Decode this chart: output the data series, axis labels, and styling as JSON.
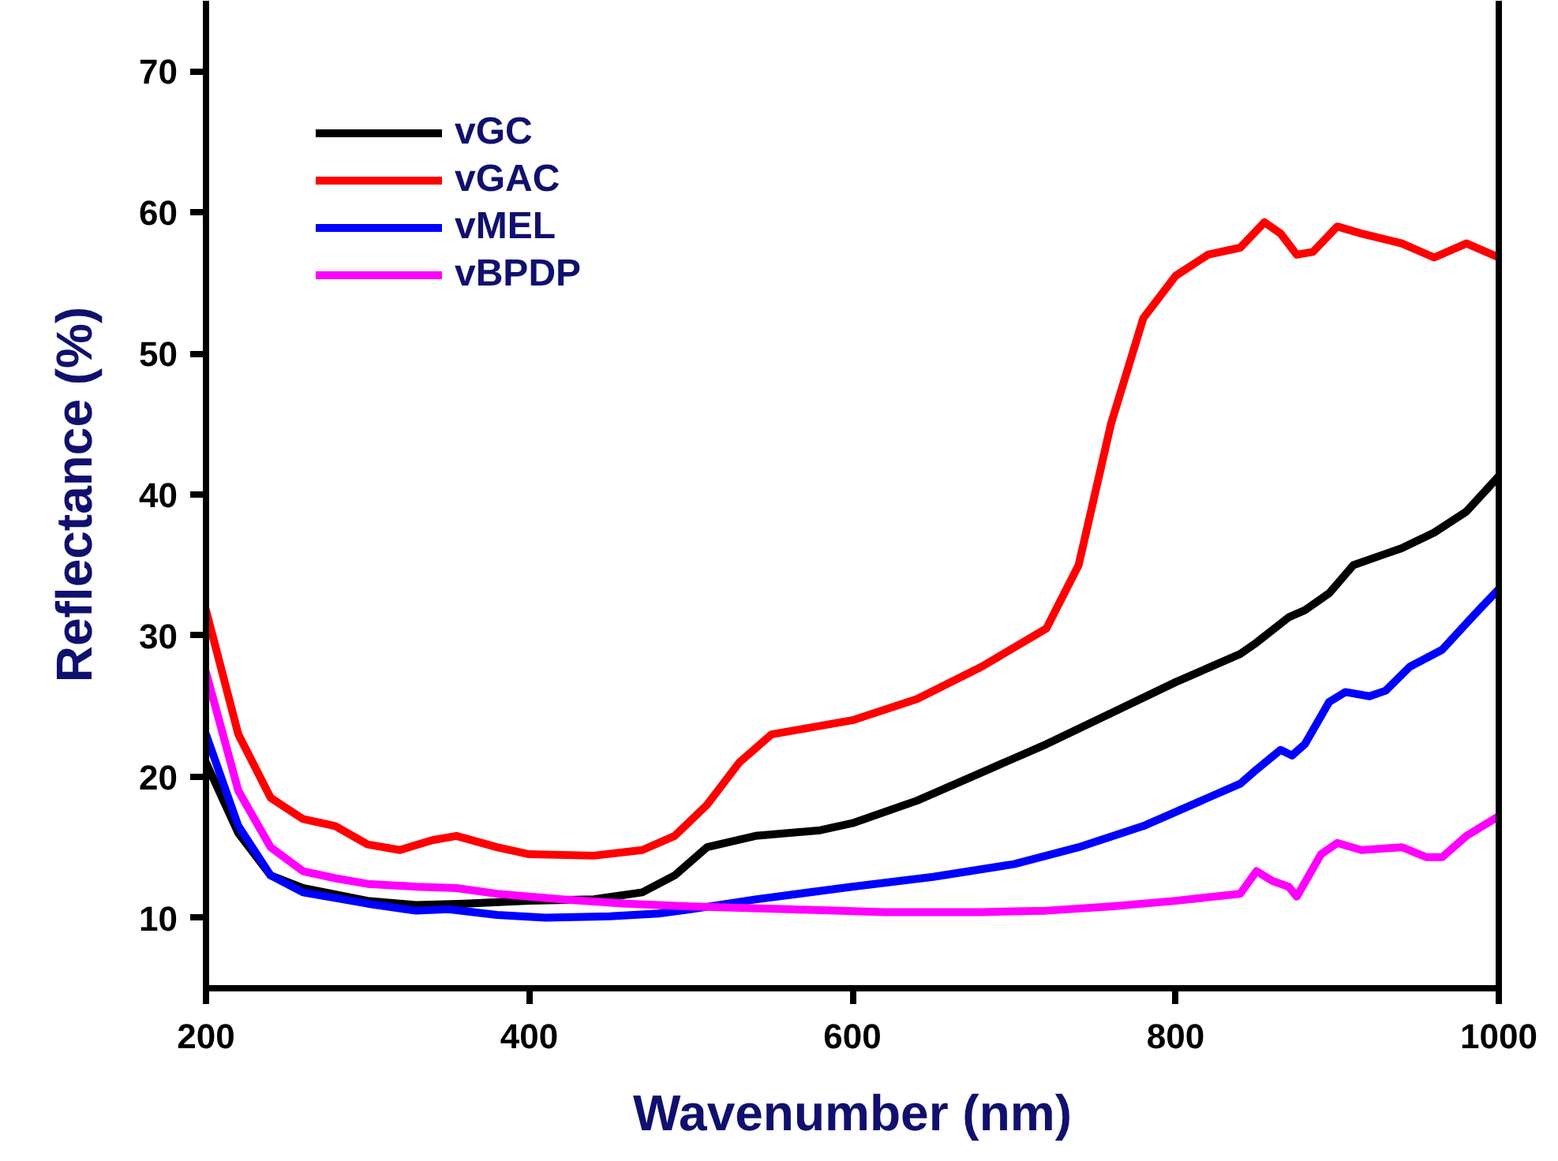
{
  "chart_data": {
    "type": "line",
    "xlabel": "Wavenumber (nm)",
    "ylabel": "Reflectance (%)",
    "xlim": [
      200,
      1000
    ],
    "ylim": [
      5,
      75
    ],
    "xticks": [
      200,
      400,
      600,
      800,
      1000
    ],
    "yticks": [
      10,
      20,
      30,
      40,
      50,
      60,
      70
    ],
    "grid": false,
    "legend": "top left",
    "marker": "none",
    "line_style": "solid",
    "series": [
      {
        "name": "vGC",
        "color": "#000000",
        "x": [
          200,
          220,
          240,
          260,
          300,
          330,
          360,
          400,
          440,
          470,
          490,
          510,
          540,
          580,
          600,
          640,
          680,
          720,
          760,
          800,
          840,
          850,
          870,
          880,
          895,
          910,
          930,
          940,
          960,
          980,
          1000
        ],
        "values": [
          21,
          16,
          13,
          12.1,
          11.2,
          10.9,
          11,
          11.2,
          11.3,
          11.8,
          13,
          15,
          15.8,
          16.2,
          16.7,
          18.3,
          20.3,
          22.3,
          24.5,
          26.7,
          28.7,
          29.5,
          31.3,
          31.8,
          33,
          35,
          35.8,
          36.2,
          37.3,
          38.8,
          41.3
        ]
      },
      {
        "name": "vGAC",
        "color": "#ff0000",
        "x": [
          200,
          220,
          240,
          260,
          280,
          300,
          320,
          340,
          355,
          380,
          400,
          440,
          470,
          490,
          510,
          530,
          550,
          575,
          600,
          640,
          680,
          720,
          740,
          760,
          780,
          800,
          820,
          840,
          855,
          865,
          875,
          885,
          900,
          915,
          940,
          960,
          980,
          1000
        ],
        "values": [
          31.8,
          23,
          18.5,
          17,
          16.5,
          15.2,
          14.8,
          15.5,
          15.8,
          15,
          14.5,
          14.4,
          14.8,
          15.8,
          18,
          21,
          23,
          23.5,
          24,
          25.5,
          27.8,
          30.5,
          35,
          45,
          52.5,
          55.5,
          57,
          57.5,
          59.3,
          58.5,
          57,
          57.2,
          59,
          58.5,
          57.8,
          56.8,
          57.8,
          56.8
        ]
      },
      {
        "name": "vMEL",
        "color": "#0000ff",
        "x": [
          200,
          220,
          240,
          260,
          300,
          330,
          350,
          380,
          410,
          450,
          480,
          500,
          540,
          600,
          650,
          700,
          740,
          780,
          820,
          840,
          850,
          865,
          872,
          880,
          895,
          905,
          920,
          930,
          945,
          965,
          985,
          1000
        ],
        "values": [
          23,
          16.5,
          13,
          11.8,
          11,
          10.5,
          10.6,
          10.2,
          10,
          10.1,
          10.3,
          10.6,
          11.3,
          12.2,
          12.9,
          13.8,
          15,
          16.5,
          18.5,
          19.5,
          20.5,
          21.9,
          21.5,
          22.3,
          25.3,
          26,
          25.7,
          26.1,
          27.8,
          29,
          31.5,
          33.3
        ]
      },
      {
        "name": "vBPDP",
        "color": "#ff00ff",
        "x": [
          200,
          220,
          240,
          260,
          280,
          300,
          330,
          355,
          380,
          420,
          460,
          500,
          560,
          620,
          680,
          720,
          760,
          800,
          840,
          850,
          860,
          870,
          875,
          890,
          900,
          915,
          940,
          955,
          965,
          980,
          1000
        ],
        "values": [
          27.4,
          19,
          15,
          13.3,
          12.8,
          12.4,
          12.2,
          12.1,
          11.7,
          11.3,
          11,
          10.8,
          10.6,
          10.4,
          10.4,
          10.5,
          10.8,
          11.2,
          11.7,
          13.3,
          12.6,
          12.2,
          11.5,
          14.5,
          15.3,
          14.8,
          15,
          14.3,
          14.3,
          15.8,
          17.2
        ]
      }
    ]
  }
}
